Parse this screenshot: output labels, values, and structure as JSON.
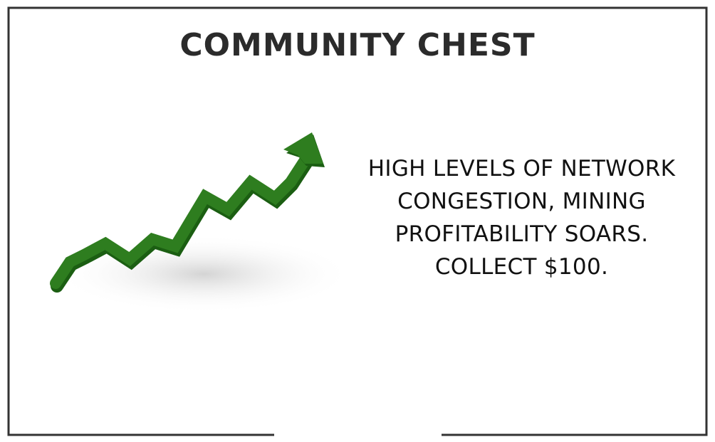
{
  "card": {
    "title": "COMMUNITY CHEST",
    "text_lines": [
      "HIGH LEVELS OF NETWORK",
      "CONGESTION, MINING",
      "PROFITABILITY SOARS.",
      "COLLECT $100."
    ],
    "graphic": "rising-arrow-icon"
  },
  "colors": {
    "border": "#333333",
    "title": "#2b2b2b",
    "arrow_green": "#2e7d1f",
    "arrow_shadow": "#1b5e12"
  }
}
